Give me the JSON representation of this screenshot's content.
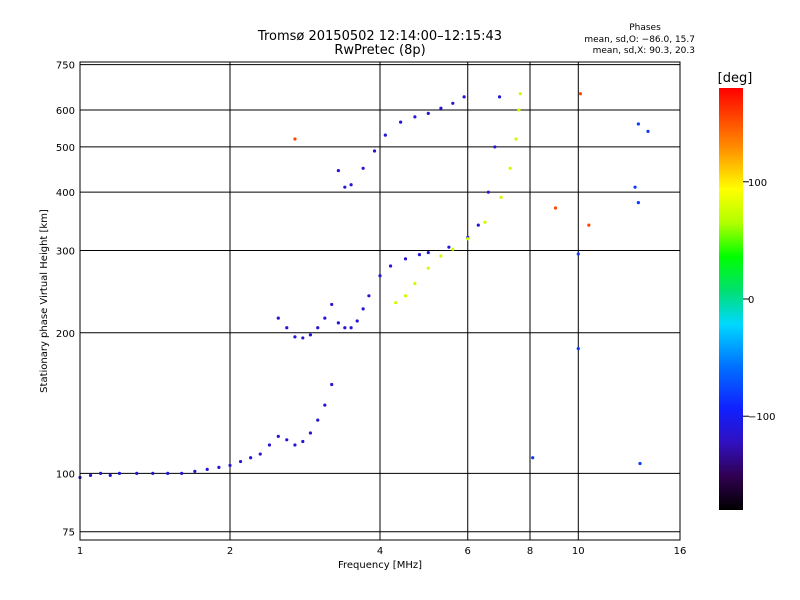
{
  "chart_data": {
    "type": "scatter",
    "title": "Tromsø 20150502 12:14:00–12:15:43",
    "subtitle": "RwPretec (8p)",
    "phase_box": {
      "heading": "Phases",
      "line_o": "mean, sd,O: −86.0, 15.7",
      "line_x": "mean, sd,X:  90.3, 20.3"
    },
    "xlabel": "Frequency [MHz]",
    "ylabel": "Stationary phase Virtual Height [km]",
    "x_scale": "log",
    "y_scale": "log",
    "xlim": [
      1,
      16
    ],
    "ylim": [
      72,
      760
    ],
    "x_ticks": [
      1,
      2,
      4,
      6,
      8,
      10,
      16
    ],
    "x_tick_labels": [
      "1",
      "2",
      "4",
      "6",
      "8",
      "10",
      "16"
    ],
    "y_ticks": [
      75,
      100,
      200,
      300,
      400,
      500,
      600,
      750
    ],
    "y_tick_labels": [
      "75",
      "100",
      "200",
      "300",
      "400",
      "500",
      "600",
      "750"
    ],
    "grid": true,
    "colorbar": {
      "label": "[deg]",
      "range": [
        -180,
        180
      ],
      "ticks": [
        100,
        0,
        -100
      ],
      "tick_labels": [
        "100",
        "0",
        "−100"
      ]
    },
    "series": [
      {
        "phase": -115,
        "points": [
          [
            1.0,
            98
          ],
          [
            1.05,
            99
          ],
          [
            1.1,
            100
          ],
          [
            1.15,
            99
          ],
          [
            1.2,
            100
          ],
          [
            1.3,
            100
          ],
          [
            1.4,
            100
          ],
          [
            1.5,
            100
          ],
          [
            1.6,
            100
          ],
          [
            1.7,
            101
          ],
          [
            1.8,
            102
          ],
          [
            1.9,
            103
          ],
          [
            2.0,
            104
          ],
          [
            2.1,
            106
          ],
          [
            2.2,
            108
          ],
          [
            2.3,
            110
          ],
          [
            2.4,
            115
          ],
          [
            2.5,
            120
          ],
          [
            2.6,
            118
          ],
          [
            2.7,
            115
          ],
          [
            2.8,
            117
          ],
          [
            2.9,
            122
          ],
          [
            3.0,
            130
          ],
          [
            3.1,
            140
          ],
          [
            3.2,
            155
          ]
        ]
      },
      {
        "phase": -115,
        "points": [
          [
            2.5,
            215
          ],
          [
            2.6,
            205
          ],
          [
            2.7,
            196
          ],
          [
            2.8,
            195
          ],
          [
            2.9,
            198
          ],
          [
            3.0,
            205
          ],
          [
            3.1,
            215
          ],
          [
            3.2,
            230
          ],
          [
            3.3,
            210
          ],
          [
            3.4,
            205
          ],
          [
            3.5,
            205
          ],
          [
            3.6,
            212
          ],
          [
            3.7,
            225
          ],
          [
            3.8,
            240
          ],
          [
            4.0,
            265
          ],
          [
            4.2,
            278
          ],
          [
            4.5,
            288
          ],
          [
            4.8,
            294
          ],
          [
            5.0,
            297
          ],
          [
            5.5,
            305
          ],
          [
            6.0,
            320
          ],
          [
            6.3,
            340
          ],
          [
            6.6,
            400
          ],
          [
            6.8,
            500
          ],
          [
            6.95,
            640
          ]
        ]
      },
      {
        "phase": -115,
        "points": [
          [
            3.3,
            445
          ],
          [
            3.4,
            410
          ],
          [
            3.5,
            415
          ],
          [
            3.7,
            450
          ],
          [
            3.9,
            490
          ],
          [
            4.1,
            530
          ],
          [
            4.4,
            565
          ],
          [
            4.7,
            580
          ],
          [
            5.0,
            590
          ],
          [
            5.3,
            605
          ],
          [
            5.6,
            620
          ],
          [
            5.9,
            640
          ]
        ]
      },
      {
        "phase": 75,
        "points": [
          [
            4.3,
            232
          ],
          [
            4.5,
            240
          ],
          [
            4.7,
            255
          ],
          [
            5.0,
            275
          ],
          [
            5.3,
            292
          ],
          [
            5.6,
            302
          ],
          [
            6.0,
            318
          ],
          [
            6.5,
            345
          ],
          [
            7.0,
            390
          ],
          [
            7.3,
            450
          ],
          [
            7.5,
            520
          ],
          [
            7.6,
            600
          ],
          [
            7.65,
            650
          ]
        ]
      },
      {
        "phase": 155,
        "points": [
          [
            2.7,
            520
          ],
          [
            10.1,
            650
          ],
          [
            10.5,
            340
          ],
          [
            9.0,
            370
          ]
        ]
      },
      {
        "phase": -85,
        "points": [
          [
            8.1,
            108
          ],
          [
            10.0,
            185
          ],
          [
            10.0,
            295
          ],
          [
            13.2,
            380
          ],
          [
            13.0,
            410
          ],
          [
            13.2,
            560
          ],
          [
            13.8,
            540
          ],
          [
            13.3,
            105
          ]
        ]
      }
    ]
  }
}
